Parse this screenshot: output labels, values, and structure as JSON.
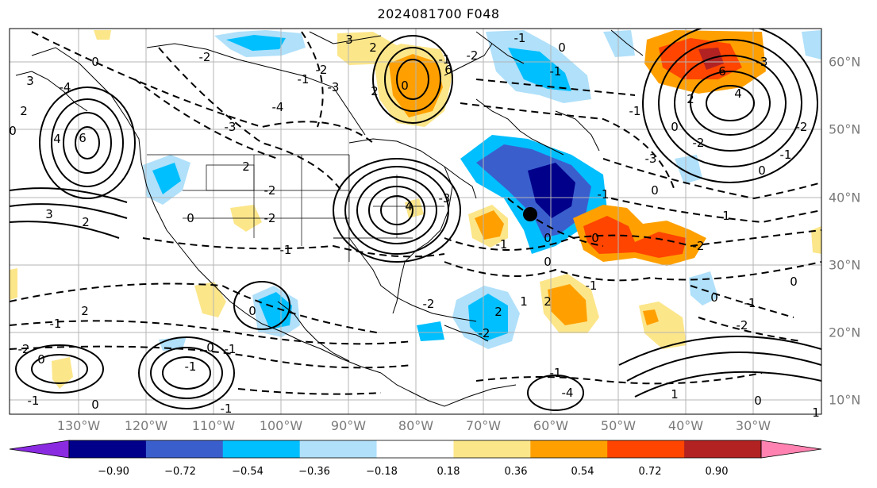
{
  "title": "2024081700 F048",
  "longitude_labels": [
    "130°W",
    "120°W",
    "110°W",
    "100°W",
    "90°W",
    "80°W",
    "70°W",
    "60°W",
    "50°W",
    "40°W",
    "30°W"
  ],
  "latitude_labels": [
    "60°N",
    "50°N",
    "40°N",
    "30°N",
    "20°N",
    "10°N"
  ],
  "colorbar": {
    "ticks": [
      "−0.90",
      "−0.72",
      "−0.54",
      "−0.36",
      "−0.18",
      "0.18",
      "0.36",
      "0.54",
      "0.72",
      "0.90"
    ],
    "colors": [
      "#8a2be2",
      "#00008b",
      "#3a5fcd",
      "#00bfff",
      "#b0e0fa",
      "#ffffff",
      "#fce68a",
      "#ffa000",
      "#ff4500",
      "#b22222",
      "#ff82b0"
    ]
  },
  "contour_labels": [
    "0",
    "-2",
    "3",
    "-4",
    "2",
    "-3",
    "2",
    "4",
    "6",
    "-2",
    "2",
    "3",
    "0",
    "-2",
    "-3",
    "-4",
    "-1",
    "-2",
    "0",
    "2",
    "-1",
    "-2",
    "-3",
    "6",
    "4",
    "3",
    "2",
    "-1",
    "0",
    "-1",
    "1",
    "-2",
    "-2",
    "2",
    "0",
    "-1",
    "0",
    "-1",
    "-2",
    "-1",
    "2",
    "0",
    "-1",
    "0",
    "-1",
    "-1",
    "-1",
    "-4",
    "6",
    "-3",
    "-2",
    "-3",
    "4",
    "2",
    "0",
    "-1",
    "-2",
    "1",
    "0",
    "-1",
    "0",
    "-2",
    "0",
    "1",
    "1",
    "-2",
    "0",
    "-1",
    "0",
    "-1",
    "0",
    "-1",
    "0",
    "2",
    "0",
    "-1",
    "0"
  ],
  "marker": "storm-center-marker",
  "colors": {
    "land_lines": "#000000",
    "grid": "#b5b5b5",
    "contours": "#000000"
  }
}
